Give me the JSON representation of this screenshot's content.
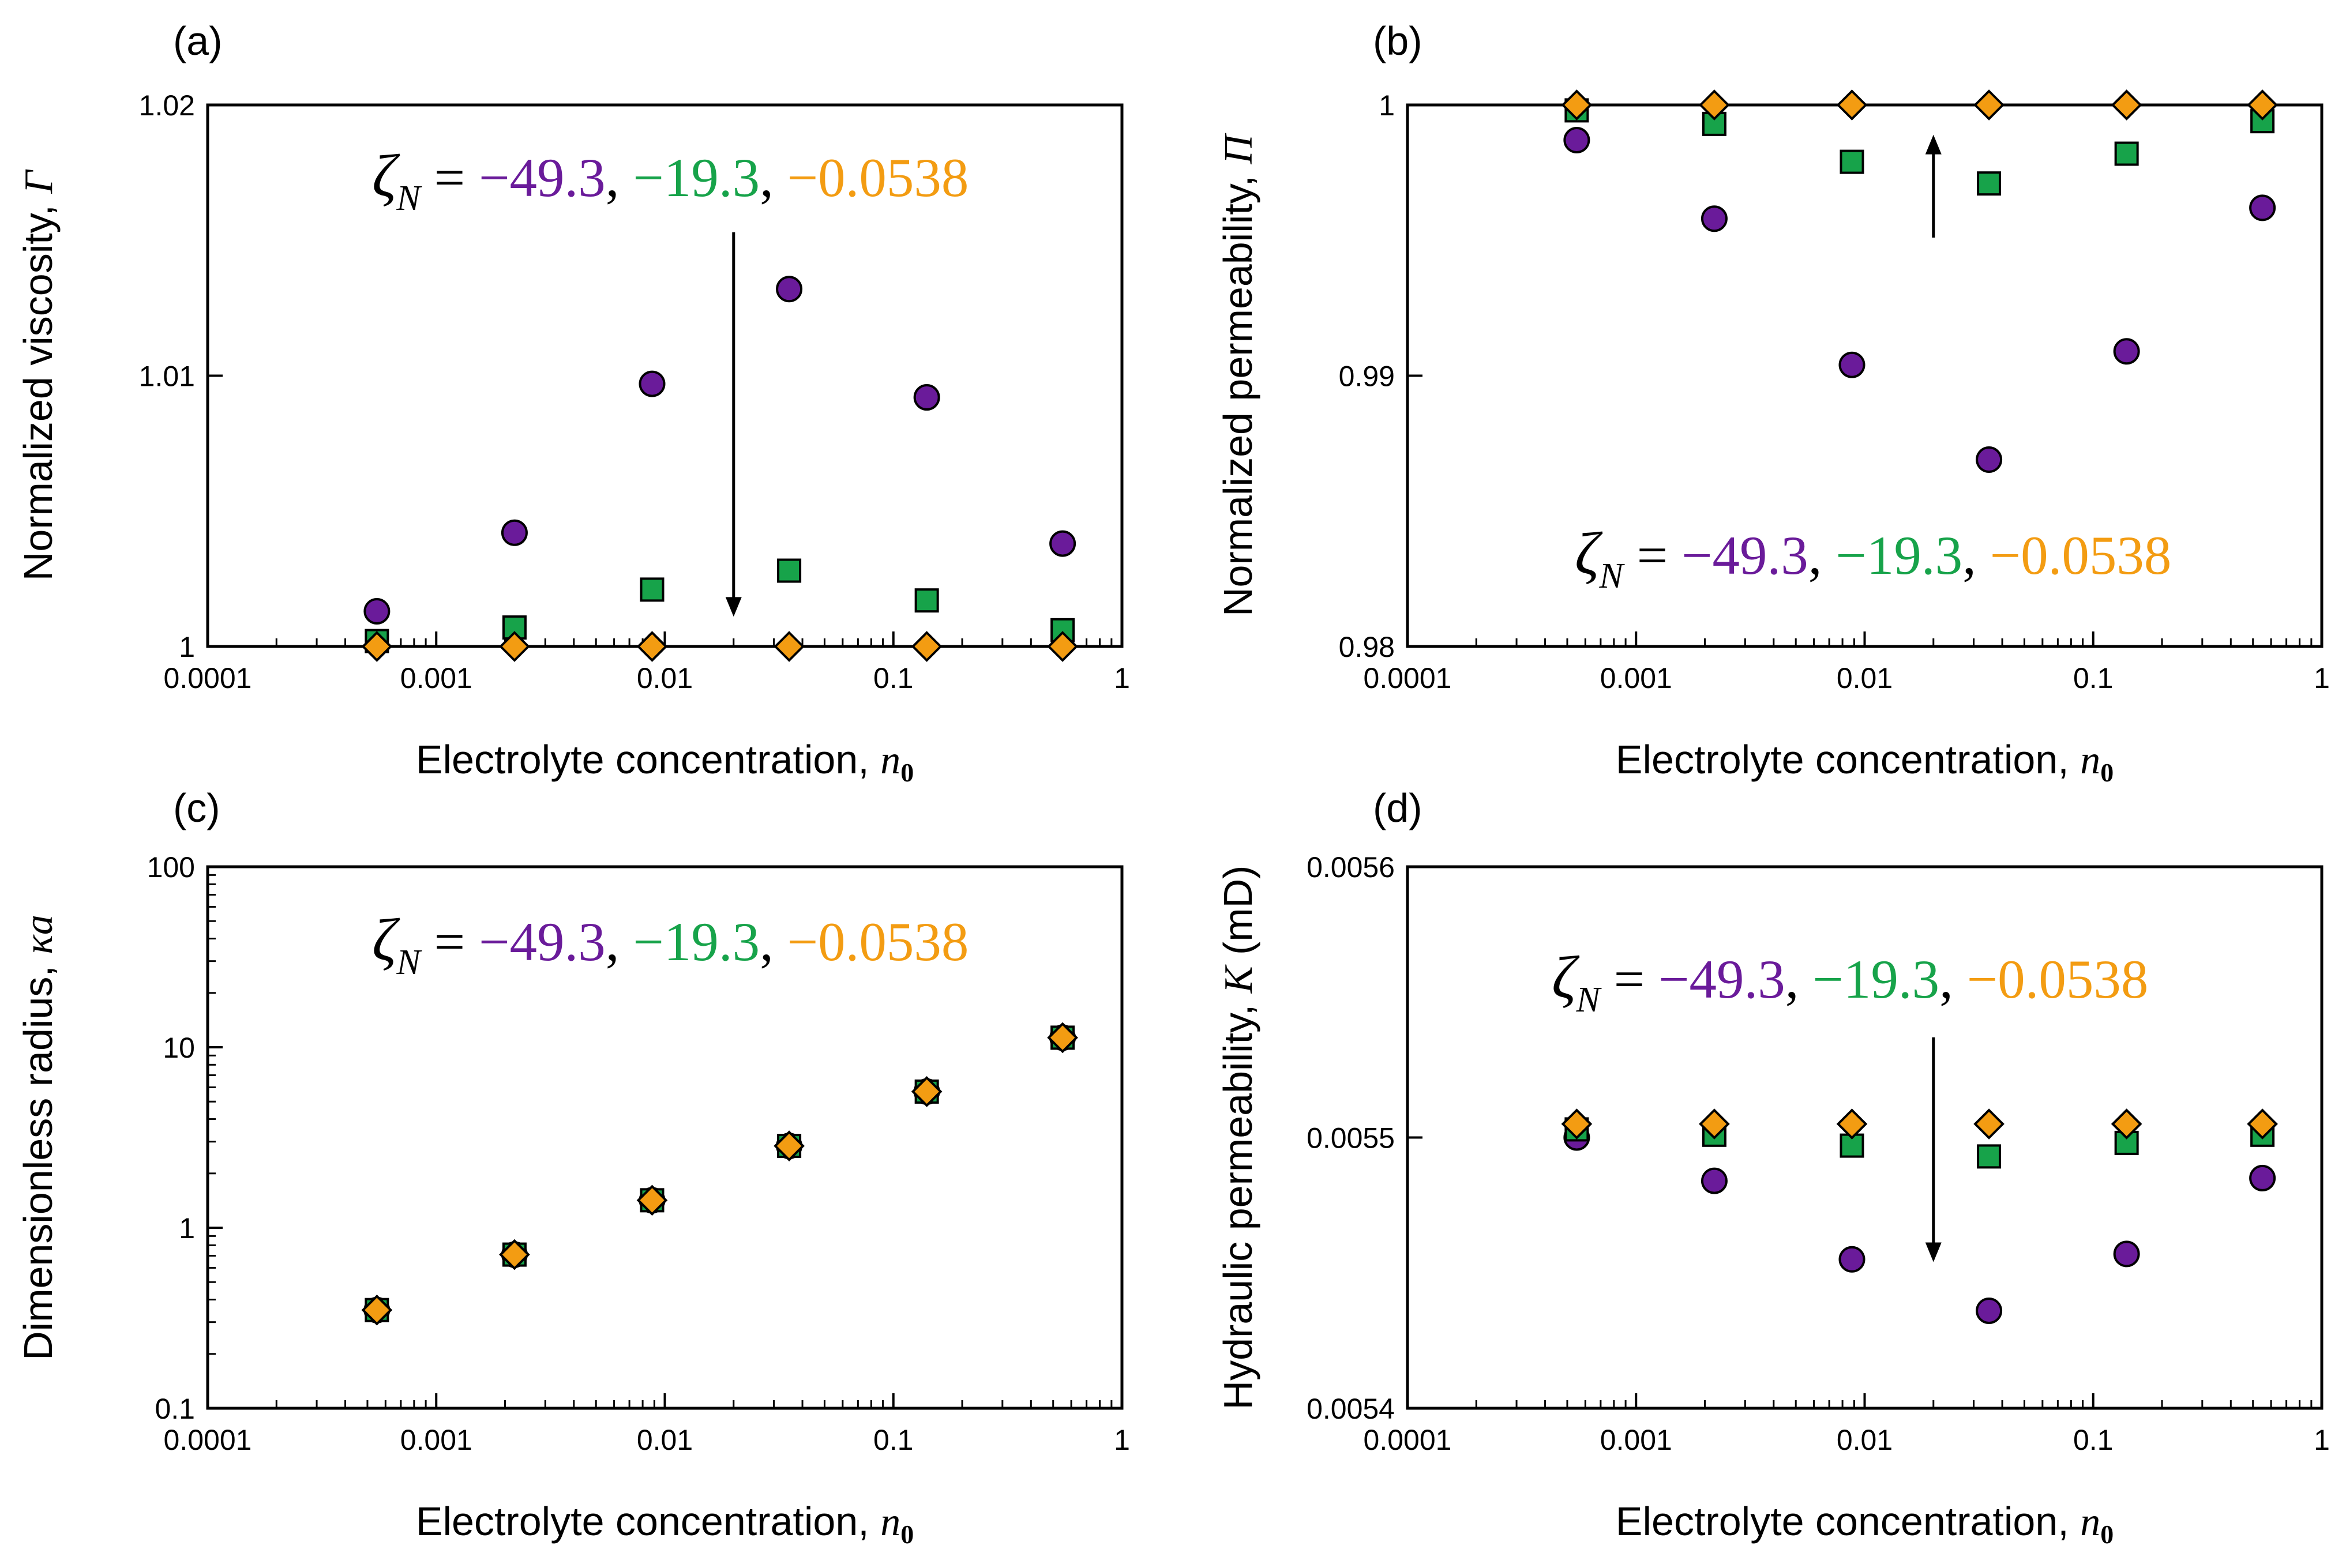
{
  "colors": {
    "purple": "#6a1b9a",
    "green": "#17a34a",
    "orange": "#f39c12",
    "axis": "#000000"
  },
  "legend_text": {
    "prefix": "ζ",
    "subscript": "N",
    "equals": " = ",
    "values": [
      "−49.3",
      "−19.3",
      "−0.0538"
    ],
    "sep": ", "
  },
  "chart_data": [
    {
      "type": "scatter",
      "panel_label": "(a)",
      "xlabel": "Electrolyte concentration, ",
      "xlabel_math": "n",
      "xlabel_sub": "0",
      "ylabel": "Normalized viscosity, ",
      "ylabel_math": "Γ",
      "xscale": "log",
      "yscale": "linear",
      "xlim": [
        0.0001,
        1
      ],
      "ylim": [
        1,
        1.02
      ],
      "xticks": [
        "0.0001",
        "0.001",
        "0.01",
        "0.1",
        "1"
      ],
      "yticks": [
        "1",
        "1.01",
        "1.02"
      ],
      "x": [
        0.00055,
        0.0022,
        0.0088,
        0.035,
        0.14,
        0.55
      ],
      "series": [
        {
          "name": "−49.3",
          "marker": "circle",
          "values": [
            1.0013,
            1.0042,
            1.0097,
            1.0132,
            1.0092,
            1.0038
          ]
        },
        {
          "name": "−19.3",
          "marker": "square",
          "values": [
            1.0002,
            1.0007,
            1.0021,
            1.0028,
            1.0017,
            1.0006
          ]
        },
        {
          "name": "−0.0538",
          "marker": "diamond",
          "values": [
            1.0,
            1.0,
            1.0,
            1.0,
            1.0,
            1.0
          ]
        }
      ],
      "arrow": {
        "x": 0.02,
        "from": 1.0153,
        "to": 1.0011
      }
    },
    {
      "type": "scatter",
      "panel_label": "(b)",
      "xlabel": "Electrolyte concentration, ",
      "xlabel_math": "n",
      "xlabel_sub": "0",
      "ylabel": "Normalized permeability, ",
      "ylabel_math": "Π",
      "xscale": "log",
      "yscale": "linear",
      "xlim": [
        0.0001,
        1
      ],
      "ylim": [
        0.98,
        1
      ],
      "xticks": [
        "0.0001",
        "0.001",
        "0.01",
        "0.1",
        "1"
      ],
      "yticks": [
        "0.98",
        "0.99",
        "1"
      ],
      "x": [
        0.00055,
        0.0022,
        0.0088,
        0.035,
        0.14,
        0.55
      ],
      "series": [
        {
          "name": "−49.3",
          "marker": "circle",
          "values": [
            0.9987,
            0.9958,
            0.9904,
            0.9869,
            0.9909,
            0.9962
          ]
        },
        {
          "name": "−19.3",
          "marker": "square",
          "values": [
            0.9998,
            0.9993,
            0.9979,
            0.9971,
            0.9982,
            0.9994
          ]
        },
        {
          "name": "−0.0538",
          "marker": "diamond",
          "values": [
            1.0,
            1.0,
            1.0,
            1.0,
            1.0,
            1.0
          ]
        }
      ],
      "arrow": {
        "x": 0.02,
        "from": 0.9951,
        "to": 0.9989
      }
    },
    {
      "type": "scatter",
      "panel_label": "(c)",
      "xlabel": "Electrolyte concentration, ",
      "xlabel_math": "n",
      "xlabel_sub": "0",
      "ylabel": "Dimensionless radius, ",
      "ylabel_math": "κa",
      "xscale": "log",
      "yscale": "log",
      "xlim": [
        0.0001,
        1
      ],
      "ylim": [
        0.1,
        100
      ],
      "xticks": [
        "0.0001",
        "0.001",
        "0.01",
        "0.1",
        "1"
      ],
      "yticks": [
        "0.1",
        "1",
        "10",
        "100"
      ],
      "x": [
        0.00055,
        0.0022,
        0.0088,
        0.035,
        0.14,
        0.55
      ],
      "series": [
        {
          "name": "−49.3",
          "marker": "circle",
          "values": [
            0.35,
            0.71,
            1.42,
            2.84,
            5.68,
            11.3
          ]
        },
        {
          "name": "−19.3",
          "marker": "square",
          "values": [
            0.35,
            0.71,
            1.42,
            2.84,
            5.68,
            11.3
          ]
        },
        {
          "name": "−0.0538",
          "marker": "diamond",
          "values": [
            0.35,
            0.71,
            1.42,
            2.84,
            5.68,
            11.3
          ]
        }
      ]
    },
    {
      "type": "scatter",
      "panel_label": "(d)",
      "xlabel": "Electrolyte concentration, ",
      "xlabel_math": "n",
      "xlabel_sub": "0",
      "ylabel": "Hydraulic permeability, ",
      "ylabel_math": "K",
      "ylabel_unit": " (mD)",
      "xscale": "log",
      "yscale": "linear",
      "xlim": [
        0.0001,
        1
      ],
      "ylim": [
        0.0054,
        0.0056
      ],
      "xticks": [
        "0.0001",
        "0.001",
        "0.01",
        "0.1",
        "1"
      ],
      "yticks": [
        "0.0054",
        "0.0055",
        "0.0056"
      ],
      "x": [
        0.00055,
        0.0022,
        0.0088,
        0.035,
        0.14,
        0.55
      ],
      "series": [
        {
          "name": "−49.3",
          "marker": "circle",
          "values": [
            0.0055,
            0.005484,
            0.005455,
            0.005436,
            0.005457,
            0.005485
          ]
        },
        {
          "name": "−19.3",
          "marker": "square",
          "values": [
            0.005503,
            0.005501,
            0.005497,
            0.005493,
            0.005498,
            0.005501
          ]
        },
        {
          "name": "−0.0538",
          "marker": "diamond",
          "values": [
            0.005505,
            0.005505,
            0.005505,
            0.005505,
            0.005505,
            0.005505
          ]
        }
      ],
      "arrow": {
        "x": 0.02,
        "from": 0.005537,
        "to": 0.005454
      }
    }
  ]
}
